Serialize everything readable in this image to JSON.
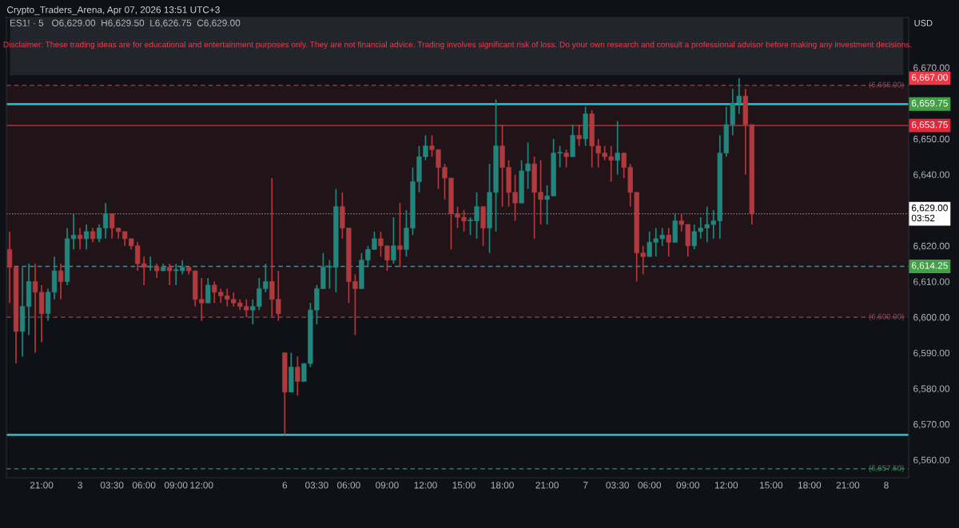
{
  "chart_data": {
    "type": "candlestick",
    "title": "Crypto_Traders_Arena, Apr 07, 2026 13:51 UTC+3",
    "subtitle": "ES1! · 5   O6,629.00  H6,629.50  L6,626.75  C6,629.00",
    "annotations": [
      "6,667.00",
      "Disclaimer: These trading ideas are for educational and entertainment purposes only. They are not financial advice. Trading involves significant risk of loss. Do your own research and consult a professional advisor before making any investment decisions.",
      "USD"
    ],
    "categories": [
      null,
      null,
      null,
      null,
      null,
      "21:00",
      null,
      null,
      null,
      null,
      null,
      "3",
      null,
      null,
      null,
      null,
      "03:30",
      null,
      null,
      null,
      null,
      "06:00",
      null,
      null,
      null,
      null,
      "09:00",
      null,
      null,
      null,
      "12:00",
      null,
      null,
      null,
      null,
      null,
      null,
      null,
      null,
      null,
      null,
      null,
      null,
      "6",
      null,
      null,
      null,
      null,
      "03:30",
      null,
      null,
      null,
      null,
      "06:00",
      null,
      null,
      null,
      null,
      null,
      "09:00",
      null,
      null,
      null,
      null,
      null,
      "12:00",
      null,
      null,
      null,
      null,
      null,
      "15:00",
      null,
      null,
      null,
      null,
      null,
      "18:00",
      null,
      null,
      null,
      null,
      null,
      null,
      "21:00",
      null,
      null,
      null,
      null,
      null,
      "7",
      null,
      null,
      null,
      null,
      "03:30",
      null,
      null,
      null,
      null,
      "06:00",
      null,
      null,
      null,
      null,
      null,
      "09:00",
      null,
      null,
      null,
      null,
      null,
      "12:00",
      null,
      null,
      null,
      null,
      null,
      null,
      "15:00",
      null,
      null,
      null,
      null,
      null,
      "18:00",
      null,
      null,
      null,
      null,
      null,
      "21:00",
      null,
      null,
      null,
      null,
      null,
      "8",
      null,
      null,
      null
    ],
    "ohlc": [
      [
        6619,
        6624,
        6604,
        6614
      ],
      [
        6614,
        6614,
        6587,
        6596
      ],
      [
        6596,
        6614,
        6589,
        6603
      ],
      [
        6603,
        6615,
        6595,
        6610
      ],
      [
        6610,
        6615,
        6590,
        6607
      ],
      [
        6607,
        6609,
        6593,
        6601
      ],
      [
        6601,
        6608,
        6599,
        6607
      ],
      [
        6607,
        6617,
        6605,
        6613
      ],
      [
        6613,
        6615,
        6605,
        6610
      ],
      [
        6610,
        6625,
        6609,
        6622
      ],
      [
        6622,
        6629,
        6619,
        6623
      ],
      [
        6623,
        6625,
        6619,
        6622
      ],
      [
        6622,
        6626,
        6619,
        6624
      ],
      [
        6624,
        6625,
        6621,
        6622
      ],
      [
        6622,
        6626,
        6621,
        6625
      ],
      [
        6625,
        6632,
        6622,
        6629
      ],
      [
        6629,
        6629,
        6622,
        6625
      ],
      [
        6625,
        6625,
        6622,
        6624
      ],
      [
        6624,
        6624,
        6620,
        6622
      ],
      [
        6622,
        6622,
        6619,
        6620
      ],
      [
        6620,
        6621,
        6613,
        6615
      ],
      [
        6615,
        6617,
        6609,
        6614
      ],
      [
        6614,
        6617,
        6613,
        6614
      ],
      [
        6614,
        6615,
        6611,
        6613
      ],
      [
        6613,
        6615,
        6613,
        6614
      ],
      [
        6614,
        6615,
        6609,
        6613
      ],
      [
        6613,
        6615,
        6609,
        6613
      ],
      [
        6613,
        6616,
        6612,
        6614
      ],
      [
        6614,
        6614,
        6612,
        6613
      ],
      [
        6613,
        6613,
        6603,
        6605
      ],
      [
        6605,
        6611,
        6599,
        6604
      ],
      [
        6604,
        6611,
        6604,
        6609
      ],
      [
        6609,
        6610,
        6604,
        6607
      ],
      [
        6607,
        6608,
        6604,
        6606
      ],
      [
        6606,
        6608,
        6603,
        6605
      ],
      [
        6605,
        6607,
        6603,
        6604
      ],
      [
        6604,
        6605,
        6602,
        6603
      ],
      [
        6603,
        6605,
        6600,
        6602
      ],
      [
        6602,
        6605,
        6598,
        6603
      ],
      [
        6603,
        6611,
        6602,
        6608
      ],
      [
        6608,
        6615,
        6607,
        6610
      ],
      [
        6610,
        6639,
        6600,
        6605
      ],
      [
        6605,
        6613,
        6599,
        6601
      ],
      [
        6590,
        6590,
        6567,
        6579
      ],
      [
        6579,
        6590,
        6579,
        6586
      ],
      [
        6586,
        6589,
        6578,
        6582
      ],
      [
        6582,
        6587,
        6582,
        6587
      ],
      [
        6587,
        6604,
        6586,
        6602
      ],
      [
        6602,
        6609,
        6598,
        6608
      ],
      [
        6608,
        6618,
        6608,
        6614
      ],
      [
        6614,
        6616,
        6608,
        6614
      ],
      [
        6614,
        6636,
        6607,
        6631
      ],
      [
        6631,
        6635,
        6622,
        6625
      ],
      [
        6625,
        6625,
        6604,
        6610
      ],
      [
        6610,
        6612,
        6595,
        6608
      ],
      [
        6608,
        6618,
        6608,
        6616
      ],
      [
        6616,
        6620,
        6614,
        6619
      ],
      [
        6619,
        6624,
        6619,
        6622
      ],
      [
        6622,
        6624,
        6617,
        6620
      ],
      [
        6620,
        6620,
        6613,
        6616
      ],
      [
        6616,
        6628,
        6615,
        6620
      ],
      [
        6620,
        6632,
        6614,
        6619
      ],
      [
        6619,
        6630,
        6617,
        6625
      ],
      [
        6625,
        6642,
        6623,
        6638
      ],
      [
        6638,
        6648,
        6635,
        6645
      ],
      [
        6645,
        6651,
        6644,
        6648
      ],
      [
        6648,
        6651,
        6645,
        6647
      ],
      [
        6647,
        6647,
        6636,
        6642
      ],
      [
        6642,
        6643,
        6633,
        6639
      ],
      [
        6639,
        6639,
        6619,
        6629
      ],
      [
        6629,
        6631,
        6625,
        6628
      ],
      [
        6628,
        6630,
        6624,
        6627
      ],
      [
        6627,
        6628,
        6623,
        6627
      ],
      [
        6627,
        6635,
        6622,
        6631
      ],
      [
        6631,
        6631,
        6620,
        6625
      ],
      [
        6625,
        6643,
        6618,
        6635
      ],
      [
        6635,
        6661,
        6624,
        6648
      ],
      [
        6648,
        6654,
        6631,
        6642
      ],
      [
        6642,
        6644,
        6631,
        6635
      ],
      [
        6635,
        6640,
        6627,
        6632
      ],
      [
        6632,
        6644,
        6632,
        6641
      ],
      [
        6641,
        6649,
        6636,
        6643
      ],
      [
        6643,
        6645,
        6622,
        6635
      ],
      [
        6635,
        6644,
        6626,
        6633
      ],
      [
        6633,
        6637,
        6626,
        6634
      ],
      [
        6634,
        6650,
        6634,
        6646
      ],
      [
        6646,
        6648,
        6642,
        6646
      ],
      [
        6646,
        6647,
        6642,
        6645
      ],
      [
        6645,
        6654,
        6645,
        6651
      ],
      [
        6651,
        6654,
        6648,
        6650
      ],
      [
        6650,
        6659,
        6648,
        6657
      ],
      [
        6657,
        6658,
        6642,
        6648
      ],
      [
        6648,
        6650,
        6642,
        6646
      ],
      [
        6646,
        6648,
        6644,
        6645
      ],
      [
        6645,
        6648,
        6638,
        6644
      ],
      [
        6644,
        6655,
        6640,
        6646
      ],
      [
        6646,
        6646,
        6639,
        6642
      ],
      [
        6642,
        6643,
        6631,
        6635
      ],
      [
        6635,
        6635,
        6610,
        6618
      ],
      [
        6618,
        6620,
        6612,
        6617
      ],
      [
        6617,
        6624,
        6617,
        6621
      ],
      [
        6621,
        6625,
        6617,
        6622
      ],
      [
        6622,
        6625,
        6620,
        6623
      ],
      [
        6623,
        6625,
        6617,
        6621
      ],
      [
        6621,
        6629,
        6621,
        6627
      ],
      [
        6627,
        6629,
        6624,
        6626
      ],
      [
        6626,
        6626,
        6617,
        6620
      ],
      [
        6620,
        6626,
        6619,
        6624
      ],
      [
        6624,
        6628,
        6622,
        6625
      ],
      [
        6625,
        6631,
        6621,
        6626
      ],
      [
        6626,
        6630,
        6622,
        6627
      ],
      [
        6627,
        6651,
        6622,
        6646
      ],
      [
        6646,
        6659,
        6645,
        6654
      ],
      [
        6654,
        6664,
        6651,
        6660
      ],
      [
        6660,
        6667,
        6657,
        6662
      ],
      [
        6662,
        6664,
        6640,
        6654
      ],
      [
        6654,
        6654,
        6626,
        6629
      ],
      null,
      null,
      null,
      null,
      null,
      null,
      null,
      null,
      null,
      null,
      null,
      null,
      null,
      null,
      null,
      null,
      null,
      null,
      null,
      null,
      null,
      null,
      null,
      null
    ],
    "ylim": [
      6555,
      6684
    ],
    "yticks": [
      {
        "value": 6560,
        "label": "6,560.00"
      },
      {
        "value": 6570,
        "label": "6,570.00"
      },
      {
        "value": 6580,
        "label": "6,580.00"
      },
      {
        "value": 6590,
        "label": "6,590.00"
      },
      {
        "value": 6600,
        "label": "6,600.00"
      },
      {
        "value": 6610,
        "label": "6,610.00"
      },
      {
        "value": 6620,
        "label": "6,620.00"
      },
      {
        "value": 6640,
        "label": "6,640.00"
      },
      {
        "value": 6650,
        "label": "6,650.00"
      },
      {
        "value": 6670,
        "label": "6,670.00"
      }
    ],
    "bands": [
      {
        "axis": "y",
        "from": 6600,
        "to": 6665,
        "color": "#211419"
      }
    ],
    "ref_lines": [
      {
        "axis": "y",
        "value": 6665,
        "label": "(6,665.00)",
        "color": "#8c4a54",
        "line_style": "dashed"
      },
      {
        "axis": "y",
        "value": 6600,
        "label": "(6,600.00)",
        "color": "#8c4a54",
        "line_style": "dashed"
      },
      {
        "axis": "y",
        "value": 6557.5,
        "label": "(6,557.50)",
        "color": "#3f8a5a",
        "line_style": "dashed"
      },
      {
        "axis": "y",
        "value": 6659.75,
        "label": "6,659.75",
        "color": "#1fb9d0",
        "line_style": "solid"
      },
      {
        "axis": "y",
        "value": 6653.75,
        "label": "6,653.75",
        "color": "#e0283a",
        "line_style": "solid"
      },
      {
        "axis": "y",
        "value": 6629,
        "label": "6,629.00\n03:52",
        "color": "#8a8a8a",
        "line_style": "dotted"
      },
      {
        "axis": "y",
        "value": 6614.25,
        "label": "6,614.25",
        "color": "#1a9bb0",
        "line_style": "dashed"
      },
      {
        "axis": "y",
        "value": 6567,
        "color": "#1fb9d0",
        "line_style": "solid"
      }
    ],
    "grid": false
  }
}
